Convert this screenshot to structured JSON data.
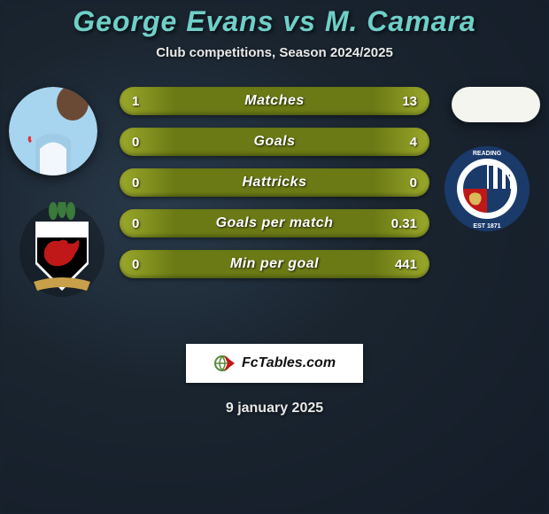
{
  "title": "George Evans vs M. Camara",
  "title_color": "#6fd0c8",
  "title_fontsize": 32,
  "subtitle": "Club competitions, Season 2024/2025",
  "subtitle_color": "#e8e8e8",
  "subtitle_fontsize": 15,
  "background_base": "#1a2332",
  "player_left": {
    "shirt_bg": "#a7d4ef",
    "shirt_accent": "#ffffff",
    "skin": "#6b4a35"
  },
  "player_right": {
    "bg": "#f5f5f0"
  },
  "club_left": {
    "shield_top": "#ffffff",
    "shield_body": "#000000",
    "dragon": "#c01818",
    "feathers": "#3a7a3a",
    "ribbon": "#c9a04a"
  },
  "club_right": {
    "ring_outer": "#1a3a6a",
    "ring_text": "#ffffff",
    "inner_bg": "#ffffff",
    "q_tl": "#1a3a6a",
    "q_br": "#1a3a6a",
    "q_tr_stripes": [
      "#1a3a6a",
      "#ffffff"
    ],
    "q_bl": "#c01818",
    "est_text": "EST 1871"
  },
  "stats": {
    "row_bg": "#6b7a15",
    "row_highlight": "#9aa82a",
    "label_fontsize": 16,
    "value_fontsize": 15,
    "rows": [
      {
        "label": "Matches",
        "left": "1",
        "right": "13"
      },
      {
        "label": "Goals",
        "left": "0",
        "right": "4"
      },
      {
        "label": "Hattricks",
        "left": "0",
        "right": "0"
      },
      {
        "label": "Goals per match",
        "left": "0",
        "right": "0.31"
      },
      {
        "label": "Min per goal",
        "left": "0",
        "right": "441"
      }
    ]
  },
  "branding": {
    "text": "FcTables.com",
    "text_color": "#111111",
    "icon_globe": "#5a8a3a",
    "icon_arrow": "#c01818",
    "fontsize": 16
  },
  "date": "9 january 2025",
  "date_color": "#e8e8e8",
  "date_fontsize": 16
}
